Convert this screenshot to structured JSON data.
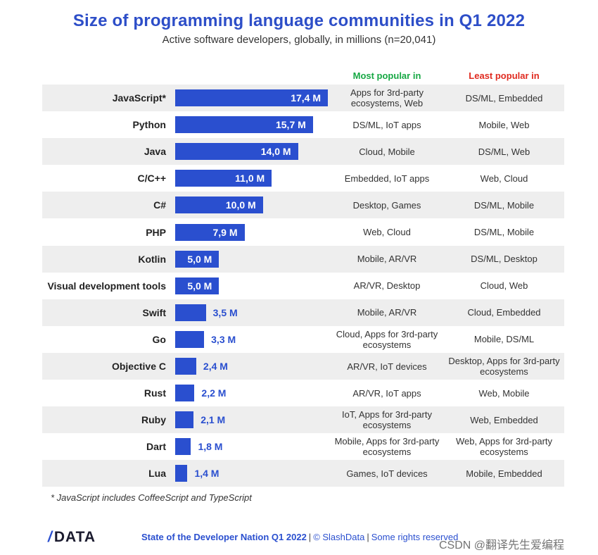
{
  "title": "Size of programming language communities in Q1 2022",
  "subtitle": "Active software developers, globally, in millions (n=20,041)",
  "columns": {
    "most": "Most popular in",
    "least": "Least popular in"
  },
  "colors": {
    "bar": "#2a4fcf",
    "title": "#2d4ec8",
    "most": "#17a844",
    "least": "#e02b20",
    "row_bg": "#eeeeee"
  },
  "chart_data": {
    "type": "bar",
    "orientation": "horizontal",
    "title": "Size of programming language communities in Q1 2022",
    "subtitle": "Active software developers, globally, in millions (n=20,041)",
    "categories": [
      "JavaScript*",
      "Python",
      "Java",
      "C/C++",
      "C#",
      "PHP",
      "Kotlin",
      "Visual development tools",
      "Swift",
      "Go",
      "Objective C",
      "Rust",
      "Ruby",
      "Dart",
      "Lua"
    ],
    "values": [
      17.4,
      15.7,
      14.0,
      11.0,
      10.0,
      7.9,
      5.0,
      5.0,
      3.5,
      3.3,
      2.4,
      2.2,
      2.1,
      1.8,
      1.4
    ],
    "value_labels": [
      "17,4 M",
      "15,7 M",
      "14,0 M",
      "11,0 M",
      "10,0 M",
      "7,9 M",
      "5,0 M",
      "5,0 M",
      "3,5 M",
      "3,3 M",
      "2,4 M",
      "2,2 M",
      "2,1 M",
      "1,8 M",
      "1,4 M"
    ],
    "most_popular_in": [
      "Apps for 3rd-party ecosystems, Web",
      "DS/ML, IoT apps",
      "Cloud, Mobile",
      "Embedded, IoT apps",
      "Desktop, Games",
      "Web, Cloud",
      "Mobile, AR/VR",
      "AR/VR, Desktop",
      "Mobile, AR/VR",
      "Cloud, Apps for 3rd-party ecosystems",
      "AR/VR, IoT devices",
      "AR/VR, IoT apps",
      "IoT, Apps for 3rd-party ecosystems",
      "Mobile, Apps for 3rd-party ecosystems",
      "Games, IoT devices"
    ],
    "least_popular_in": [
      "DS/ML, Embedded",
      "Mobile, Web",
      "DS/ML, Web",
      "Web, Cloud",
      "DS/ML, Mobile",
      "DS/ML, Mobile",
      "DS/ML, Desktop",
      "Cloud, Web",
      "Cloud, Embedded",
      "Mobile, DS/ML",
      "Desktop, Apps for 3rd-party ecosystems",
      "Web, Mobile",
      "Web, Embedded",
      "Web, Apps for 3rd-party ecosystems",
      "Mobile, Embedded"
    ],
    "xlim": [
      0,
      17.4
    ],
    "grid": false,
    "legend": "none"
  },
  "footnote": "* JavaScript includes CoffeeScript and TypeScript",
  "footer": {
    "logo": "DATA",
    "report": "State of the Developer Nation Q1 2022",
    "separator1": "|",
    "copyright": "© SlashData",
    "separator2": "|",
    "rights": "Some rights reserved"
  },
  "watermark": "CSDN @翻译先生爱编程"
}
